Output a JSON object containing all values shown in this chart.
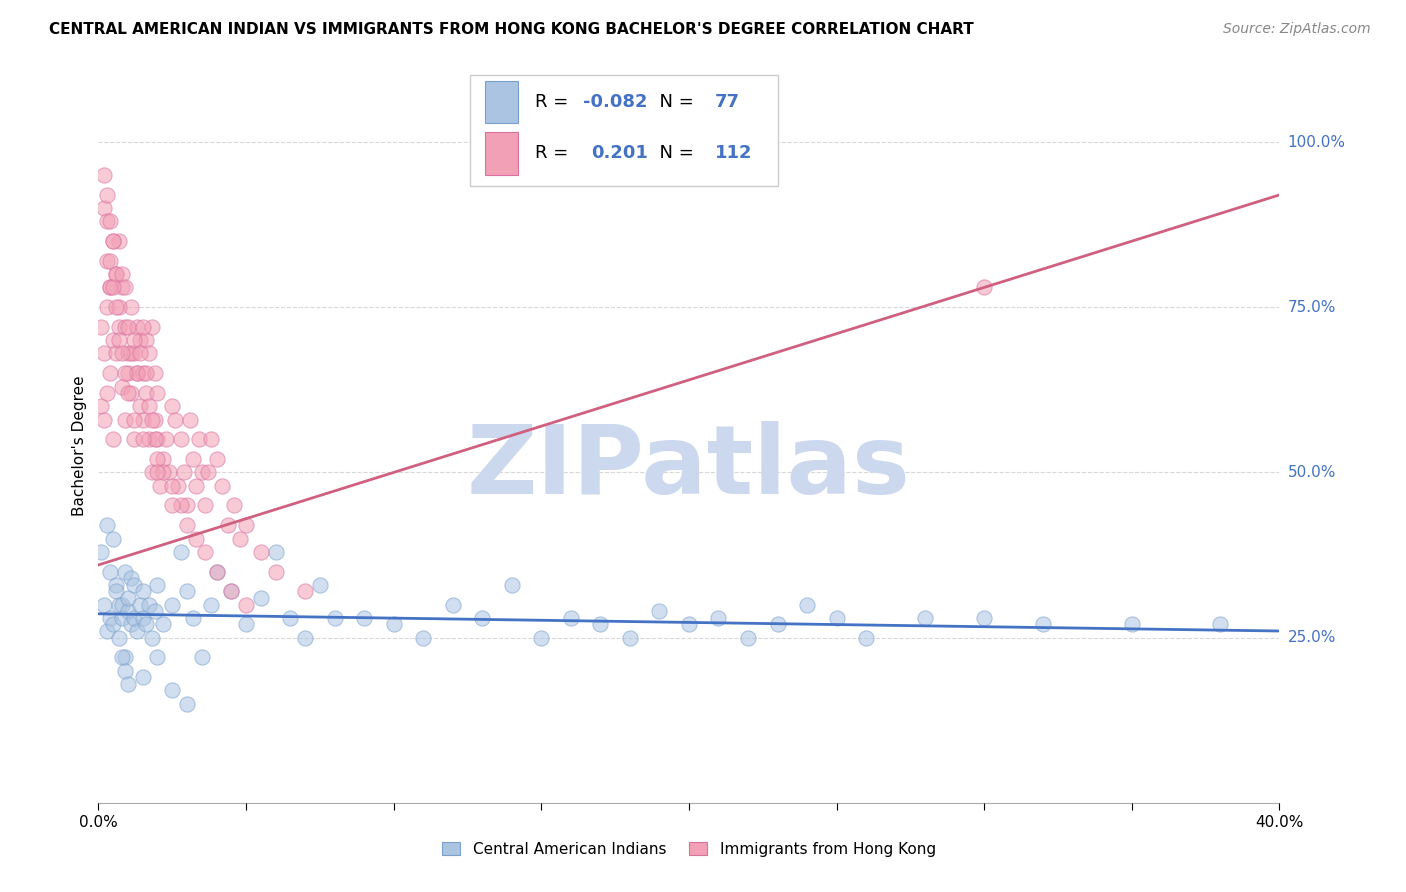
{
  "title": "CENTRAL AMERICAN INDIAN VS IMMIGRANTS FROM HONG KONG BACHELOR'S DEGREE CORRELATION CHART",
  "source": "Source: ZipAtlas.com",
  "ylabel": "Bachelor's Degree",
  "ytick_labels": [
    "100.0%",
    "75.0%",
    "50.0%",
    "25.0%"
  ],
  "ytick_values": [
    1.0,
    0.75,
    0.5,
    0.25
  ],
  "xlim": [
    0.0,
    0.4
  ],
  "ylim": [
    0.0,
    1.08
  ],
  "blue_R": "-0.082",
  "blue_N": "77",
  "pink_R": "0.201",
  "pink_N": "112",
  "blue_color": "#aac4e2",
  "pink_color": "#f2a0b5",
  "blue_edge_color": "#7aA0cc",
  "pink_edge_color": "#d870a0",
  "blue_line_color": "#4472c4",
  "pink_line_color": "#d06080",
  "watermark": "ZIPatlas",
  "legend_label_blue": "Central American Indians",
  "legend_label_pink": "Immigrants from Hong Kong",
  "blue_scatter_x": [
    0.001,
    0.002,
    0.003,
    0.003,
    0.004,
    0.004,
    0.005,
    0.005,
    0.006,
    0.006,
    0.007,
    0.007,
    0.008,
    0.008,
    0.009,
    0.009,
    0.01,
    0.01,
    0.011,
    0.011,
    0.012,
    0.012,
    0.013,
    0.014,
    0.015,
    0.015,
    0.016,
    0.017,
    0.018,
    0.019,
    0.02,
    0.022,
    0.025,
    0.028,
    0.03,
    0.032,
    0.035,
    0.038,
    0.04,
    0.045,
    0.05,
    0.055,
    0.06,
    0.065,
    0.07,
    0.075,
    0.08,
    0.09,
    0.1,
    0.11,
    0.12,
    0.13,
    0.14,
    0.15,
    0.16,
    0.17,
    0.18,
    0.19,
    0.2,
    0.21,
    0.22,
    0.23,
    0.24,
    0.25,
    0.26,
    0.28,
    0.3,
    0.32,
    0.35,
    0.38,
    0.008,
    0.009,
    0.01,
    0.015,
    0.02,
    0.025,
    0.03
  ],
  "blue_scatter_y": [
    0.38,
    0.3,
    0.42,
    0.26,
    0.35,
    0.28,
    0.4,
    0.27,
    0.33,
    0.32,
    0.3,
    0.25,
    0.28,
    0.3,
    0.35,
    0.22,
    0.29,
    0.31,
    0.27,
    0.34,
    0.28,
    0.33,
    0.26,
    0.3,
    0.28,
    0.32,
    0.27,
    0.3,
    0.25,
    0.29,
    0.33,
    0.27,
    0.3,
    0.38,
    0.32,
    0.28,
    0.22,
    0.3,
    0.35,
    0.32,
    0.27,
    0.31,
    0.38,
    0.28,
    0.25,
    0.33,
    0.28,
    0.28,
    0.27,
    0.25,
    0.3,
    0.28,
    0.33,
    0.25,
    0.28,
    0.27,
    0.25,
    0.29,
    0.27,
    0.28,
    0.25,
    0.27,
    0.3,
    0.28,
    0.25,
    0.28,
    0.28,
    0.27,
    0.27,
    0.27,
    0.22,
    0.2,
    0.18,
    0.19,
    0.22,
    0.17,
    0.15
  ],
  "pink_scatter_x": [
    0.001,
    0.001,
    0.002,
    0.002,
    0.003,
    0.003,
    0.004,
    0.004,
    0.005,
    0.005,
    0.006,
    0.006,
    0.007,
    0.007,
    0.008,
    0.008,
    0.009,
    0.009,
    0.01,
    0.01,
    0.011,
    0.011,
    0.012,
    0.012,
    0.013,
    0.013,
    0.014,
    0.014,
    0.015,
    0.015,
    0.016,
    0.016,
    0.017,
    0.017,
    0.018,
    0.018,
    0.019,
    0.019,
    0.02,
    0.02,
    0.021,
    0.022,
    0.023,
    0.024,
    0.025,
    0.026,
    0.027,
    0.028,
    0.029,
    0.03,
    0.031,
    0.032,
    0.033,
    0.034,
    0.035,
    0.036,
    0.037,
    0.038,
    0.04,
    0.042,
    0.044,
    0.046,
    0.048,
    0.05,
    0.055,
    0.06,
    0.07,
    0.003,
    0.004,
    0.005,
    0.006,
    0.007,
    0.008,
    0.009,
    0.01,
    0.011,
    0.012,
    0.013,
    0.014,
    0.015,
    0.016,
    0.017,
    0.018,
    0.019,
    0.02,
    0.022,
    0.025,
    0.028,
    0.03,
    0.033,
    0.036,
    0.04,
    0.045,
    0.05,
    0.002,
    0.003,
    0.004,
    0.005,
    0.006,
    0.007,
    0.008,
    0.009,
    0.01,
    0.012,
    0.015,
    0.02,
    0.025,
    0.3,
    0.002,
    0.003,
    0.004,
    0.005
  ],
  "pink_scatter_y": [
    0.6,
    0.72,
    0.58,
    0.68,
    0.62,
    0.75,
    0.65,
    0.78,
    0.55,
    0.7,
    0.68,
    0.8,
    0.72,
    0.85,
    0.63,
    0.78,
    0.58,
    0.72,
    0.65,
    0.68,
    0.75,
    0.62,
    0.68,
    0.55,
    0.65,
    0.72,
    0.7,
    0.6,
    0.65,
    0.58,
    0.7,
    0.62,
    0.55,
    0.68,
    0.72,
    0.5,
    0.65,
    0.58,
    0.62,
    0.55,
    0.48,
    0.52,
    0.55,
    0.5,
    0.6,
    0.58,
    0.48,
    0.55,
    0.5,
    0.45,
    0.58,
    0.52,
    0.48,
    0.55,
    0.5,
    0.45,
    0.5,
    0.55,
    0.52,
    0.48,
    0.42,
    0.45,
    0.4,
    0.42,
    0.38,
    0.35,
    0.32,
    0.82,
    0.78,
    0.85,
    0.8,
    0.75,
    0.8,
    0.78,
    0.72,
    0.68,
    0.7,
    0.65,
    0.68,
    0.72,
    0.65,
    0.6,
    0.58,
    0.55,
    0.52,
    0.5,
    0.48,
    0.45,
    0.42,
    0.4,
    0.38,
    0.35,
    0.32,
    0.3,
    0.9,
    0.88,
    0.82,
    0.78,
    0.75,
    0.7,
    0.68,
    0.65,
    0.62,
    0.58,
    0.55,
    0.5,
    0.45,
    0.78,
    0.95,
    0.92,
    0.88,
    0.85
  ],
  "blue_trend_x": [
    0.0,
    0.4
  ],
  "blue_trend_y": [
    0.286,
    0.26
  ],
  "pink_trend_x": [
    0.0,
    0.4
  ],
  "pink_trend_y": [
    0.36,
    0.92
  ],
  "grid_color": "#d8d8d8",
  "background_color": "#ffffff",
  "title_fontsize": 11,
  "axis_label_fontsize": 11,
  "tick_fontsize": 11,
  "legend_fontsize": 13,
  "source_fontsize": 10,
  "watermark_fontsize": 70,
  "watermark_color": "#ccd8ee",
  "scatter_size": 120,
  "scatter_alpha": 0.55,
  "line_width": 2.0
}
